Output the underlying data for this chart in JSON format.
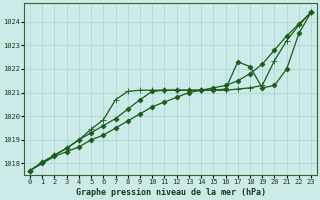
{
  "title": "Graphe pression niveau de la mer (hPa)",
  "bg_color": "#cceae8",
  "grid_color": "#aad4d0",
  "line_color": "#1a5c1a",
  "xlim": [
    -0.5,
    23.5
  ],
  "ylim": [
    1017.5,
    1024.8
  ],
  "xticks": [
    0,
    1,
    2,
    3,
    4,
    5,
    6,
    7,
    8,
    9,
    10,
    11,
    12,
    13,
    14,
    15,
    16,
    17,
    18,
    19,
    20,
    21,
    22,
    23
  ],
  "yticks": [
    1018,
    1019,
    1020,
    1021,
    1022,
    1023,
    1024
  ],
  "series": [
    {
      "x": [
        0,
        1,
        2,
        3,
        4,
        5,
        6,
        7,
        8,
        9,
        10,
        11,
        12,
        13,
        14,
        15,
        16,
        17,
        18,
        19,
        20,
        21,
        22,
        23
      ],
      "y": [
        1017.7,
        1018.0,
        1018.3,
        1018.5,
        1018.7,
        1019.0,
        1019.2,
        1019.5,
        1019.8,
        1020.1,
        1020.4,
        1020.6,
        1020.8,
        1021.0,
        1021.1,
        1021.2,
        1021.3,
        1021.5,
        1021.8,
        1022.2,
        1022.8,
        1023.4,
        1023.9,
        1024.4
      ],
      "marker": "D",
      "markersize": 2.5,
      "linewidth": 0.9
    },
    {
      "x": [
        0,
        1,
        2,
        3,
        4,
        5,
        6,
        7,
        8,
        9,
        10,
        11,
        12,
        13,
        14,
        15,
        16,
        17,
        18,
        19,
        20,
        21,
        22,
        23
      ],
      "y": [
        1017.7,
        1018.05,
        1018.35,
        1018.65,
        1019.0,
        1019.45,
        1019.85,
        1020.7,
        1021.05,
        1021.1,
        1021.1,
        1021.1,
        1021.1,
        1021.1,
        1021.1,
        1021.1,
        1021.1,
        1021.15,
        1021.2,
        1021.3,
        1022.35,
        1023.2,
        1023.85,
        1024.4
      ],
      "marker": "+",
      "markersize": 4,
      "linewidth": 0.9
    },
    {
      "x": [
        0,
        1,
        2,
        3,
        4,
        5,
        6,
        7,
        8,
        9,
        10,
        11,
        12,
        13,
        14,
        15,
        16,
        17,
        18,
        19,
        20,
        21,
        22,
        23
      ],
      "y": [
        1017.7,
        1018.05,
        1018.35,
        1018.65,
        1019.0,
        1019.3,
        1019.6,
        1019.9,
        1020.3,
        1020.7,
        1021.05,
        1021.1,
        1021.1,
        1021.1,
        1021.1,
        1021.1,
        1021.15,
        1022.3,
        1022.1,
        1021.2,
        1021.3,
        1022.0,
        1023.5,
        1024.4
      ],
      "marker": "D",
      "markersize": 2.5,
      "linewidth": 0.9
    }
  ]
}
